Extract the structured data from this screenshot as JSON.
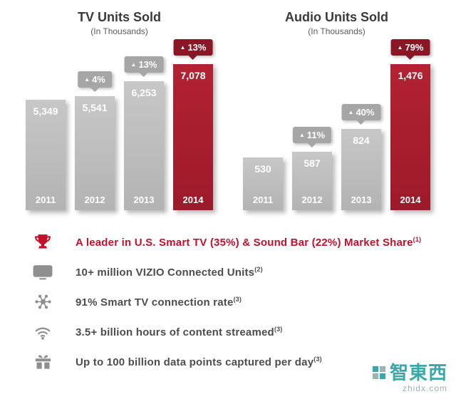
{
  "colors": {
    "bar_gray": "#bdbdbd",
    "bar_red": "#a81e2e",
    "badge_gray": "#a6a6a6",
    "badge_red": "#8b1726",
    "leader_red": "#c3112b",
    "fact_text_gray": "#4d4d4d",
    "watermark_teal": "#3aa7a9"
  },
  "ui": {
    "up_arrow": "▲"
  },
  "chart_data": [
    {
      "type": "bar",
      "title": "TV Units Sold",
      "subtitle": "(In Thousands)",
      "categories": [
        "2011",
        "2012",
        "2013",
        "2014"
      ],
      "values": [
        5349,
        5541,
        6253,
        7078
      ],
      "value_labels": [
        "5,349",
        "5,541",
        "6,253",
        "7,078"
      ],
      "pct_change": [
        null,
        "4%",
        "13%",
        "13%"
      ],
      "highlight_index": 3,
      "ylim": [
        0,
        7078
      ],
      "legend": "none",
      "grid": false
    },
    {
      "type": "bar",
      "title": "Audio Units Sold",
      "subtitle": "(In Thousands)",
      "categories": [
        "2011",
        "2012",
        "2013",
        "2014"
      ],
      "values": [
        530,
        587,
        824,
        1476
      ],
      "value_labels": [
        "530",
        "587",
        "824",
        "1,476"
      ],
      "pct_change": [
        null,
        "11%",
        "40%",
        "79%"
      ],
      "highlight_index": 3,
      "ylim": [
        0,
        1476
      ],
      "legend": "none",
      "grid": false
    }
  ],
  "facts": {
    "items": [
      {
        "icon": "trophy-icon",
        "text": "A leader in U.S. Smart TV (35%) & Sound Bar (22%) Market Share",
        "sup": "(1)",
        "emphasis": true
      },
      {
        "icon": "tv-icon",
        "text": "10+ million VIZIO Connected Units",
        "sup": "(2)",
        "emphasis": false
      },
      {
        "icon": "network-icon",
        "text": "91% Smart TV connection rate",
        "sup": "(3)",
        "emphasis": false
      },
      {
        "icon": "wifi-icon",
        "text": "3.5+ billion hours of content streamed",
        "sup": "(3)",
        "emphasis": false
      },
      {
        "icon": "gift-icon",
        "text": "Up to 100 billion data points captured per day",
        "sup": "(3)",
        "emphasis": false
      }
    ]
  },
  "watermark": {
    "brand": "智東西",
    "domain": "zhidx.com"
  }
}
